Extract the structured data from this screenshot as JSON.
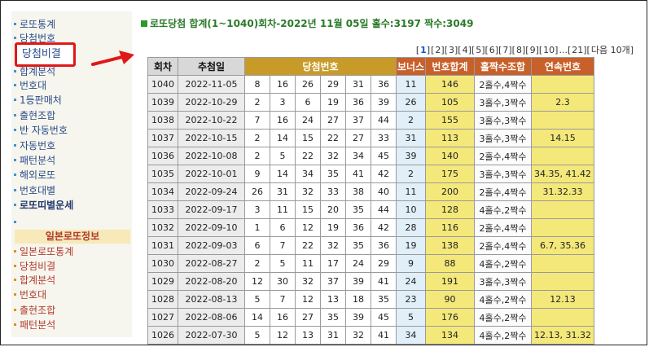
{
  "sidebar": {
    "items": [
      {
        "label": "로또통계"
      },
      {
        "label": "당첨번호"
      },
      {
        "label": "합계분석"
      },
      {
        "label": "번호대"
      },
      {
        "label": "1등판매처"
      },
      {
        "label": "출현조합"
      },
      {
        "label": "반 자동번호"
      },
      {
        "label": "자동번호"
      },
      {
        "label": "패턴분석"
      },
      {
        "label": "해외로또"
      },
      {
        "label": "번호대별"
      },
      {
        "label": "로또띠별운세"
      }
    ],
    "highlighted_item": "당첨비결",
    "japan_header": "일본로또정보",
    "japan_items": [
      {
        "label": "일본로또통계"
      },
      {
        "label": "당첨비결"
      },
      {
        "label": "합계분석"
      },
      {
        "label": "번호대"
      },
      {
        "label": "출현조합"
      },
      {
        "label": "패턴분석"
      }
    ]
  },
  "heading": "로또당첨 합계(1~1040)회차-2022년 11월 05일 홀수:3197 짝수:3049",
  "pager": {
    "current": "1",
    "pages": [
      "2",
      "3",
      "4",
      "5",
      "6",
      "7",
      "8",
      "9",
      "10"
    ],
    "ellipsis": "...",
    "last": "21",
    "next_label": "다음 10개"
  },
  "table": {
    "headers": {
      "round": "회차",
      "date": "추첨일",
      "numbers": "당첨번호",
      "bonus": "보너스",
      "sum": "번호합계",
      "oddeven": "홀짝수조합",
      "consecutive": "연속번호"
    },
    "rows": [
      {
        "round": "1040",
        "date": "2022-11-05",
        "n": [
          "8",
          "16",
          "26",
          "29",
          "31",
          "36"
        ],
        "bonus": "11",
        "sum": "146",
        "oddeven": "2홀수,4짝수",
        "consec": ""
      },
      {
        "round": "1039",
        "date": "2022-10-29",
        "n": [
          "2",
          "3",
          "6",
          "19",
          "36",
          "39"
        ],
        "bonus": "26",
        "sum": "105",
        "oddeven": "3홀수,3짝수",
        "consec": "2.3"
      },
      {
        "round": "1038",
        "date": "2022-10-22",
        "n": [
          "7",
          "16",
          "24",
          "27",
          "37",
          "44"
        ],
        "bonus": "2",
        "sum": "155",
        "oddeven": "3홀수,3짝수",
        "consec": ""
      },
      {
        "round": "1037",
        "date": "2022-10-15",
        "n": [
          "2",
          "14",
          "15",
          "22",
          "27",
          "33"
        ],
        "bonus": "31",
        "sum": "113",
        "oddeven": "3홀수,3짝수",
        "consec": "14.15"
      },
      {
        "round": "1036",
        "date": "2022-10-08",
        "n": [
          "2",
          "5",
          "22",
          "32",
          "34",
          "45"
        ],
        "bonus": "39",
        "sum": "140",
        "oddeven": "2홀수,4짝수",
        "consec": ""
      },
      {
        "round": "1035",
        "date": "2022-10-01",
        "n": [
          "9",
          "14",
          "34",
          "35",
          "41",
          "42"
        ],
        "bonus": "2",
        "sum": "175",
        "oddeven": "3홀수,3짝수",
        "consec": "34.35, 41.42"
      },
      {
        "round": "1034",
        "date": "2022-09-24",
        "n": [
          "26",
          "31",
          "32",
          "33",
          "38",
          "40"
        ],
        "bonus": "11",
        "sum": "200",
        "oddeven": "2홀수,4짝수",
        "consec": "31.32.33"
      },
      {
        "round": "1033",
        "date": "2022-09-17",
        "n": [
          "3",
          "11",
          "15",
          "20",
          "35",
          "44"
        ],
        "bonus": "10",
        "sum": "128",
        "oddeven": "4홀수,2짝수",
        "consec": ""
      },
      {
        "round": "1032",
        "date": "2022-09-10",
        "n": [
          "1",
          "6",
          "12",
          "19",
          "36",
          "42"
        ],
        "bonus": "28",
        "sum": "116",
        "oddeven": "2홀수,4짝수",
        "consec": ""
      },
      {
        "round": "1031",
        "date": "2022-09-03",
        "n": [
          "6",
          "7",
          "22",
          "32",
          "35",
          "36"
        ],
        "bonus": "19",
        "sum": "138",
        "oddeven": "2홀수,4짝수",
        "consec": "6.7, 35.36"
      },
      {
        "round": "1030",
        "date": "2022-08-27",
        "n": [
          "2",
          "5",
          "11",
          "17",
          "24",
          "29"
        ],
        "bonus": "9",
        "sum": "88",
        "oddeven": "4홀수,2짝수",
        "consec": ""
      },
      {
        "round": "1029",
        "date": "2022-08-20",
        "n": [
          "12",
          "30",
          "32",
          "37",
          "39",
          "41"
        ],
        "bonus": "24",
        "sum": "191",
        "oddeven": "3홀수,3짝수",
        "consec": ""
      },
      {
        "round": "1028",
        "date": "2022-08-13",
        "n": [
          "5",
          "7",
          "12",
          "13",
          "18",
          "35"
        ],
        "bonus": "23",
        "sum": "90",
        "oddeven": "4홀수,2짝수",
        "consec": "12.13"
      },
      {
        "round": "1027",
        "date": "2022-08-06",
        "n": [
          "14",
          "16",
          "27",
          "35",
          "39",
          "45"
        ],
        "bonus": "5",
        "sum": "176",
        "oddeven": "4홀수,2짝수",
        "consec": ""
      },
      {
        "round": "1026",
        "date": "2022-07-30",
        "n": [
          "5",
          "12",
          "13",
          "31",
          "32",
          "41"
        ],
        "bonus": "34",
        "sum": "134",
        "oddeven": "4홀수,2짝수",
        "consec": "12.13, 31.32"
      }
    ]
  },
  "colors": {
    "heading_green": "#2a7a2a",
    "highlight_red": "#e01818",
    "header_orange": "#c89a28",
    "header_rust": "#c8602a",
    "sum_yellow": "#f4e87a",
    "bonus_blue": "#e0eff8"
  }
}
